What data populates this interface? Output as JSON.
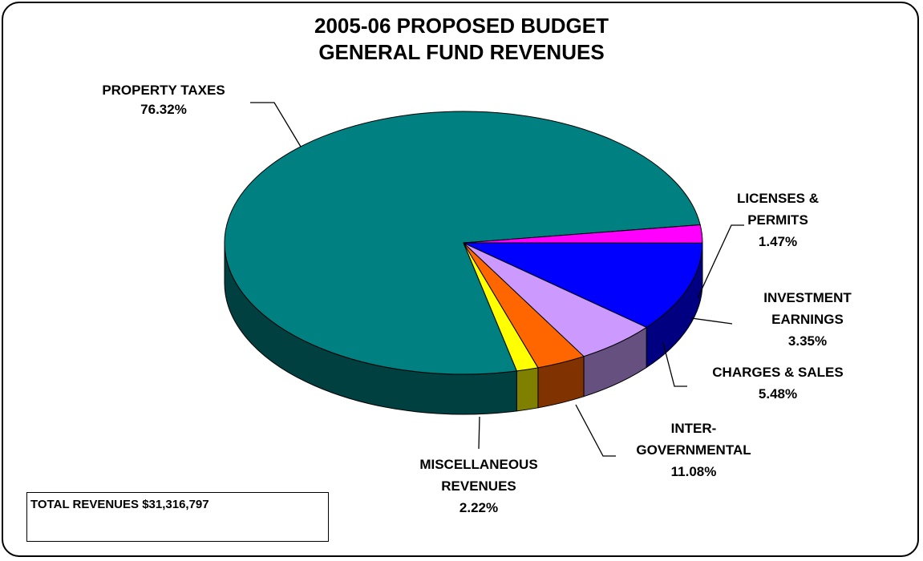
{
  "chart_data": {
    "type": "pie",
    "title": "2005-06 PROPOSED BUDGET",
    "subtitle": "GENERAL FUND REVENUES",
    "unit": "%",
    "slices": [
      {
        "name": "PROPERTY TAXES",
        "label_lines": [
          "PROPERTY TAXES"
        ],
        "value": 76.32,
        "value_label": "76.32%",
        "color": "#008080",
        "side_color": "#004040"
      },
      {
        "name": "LICENSES & PERMITS",
        "label_lines": [
          "LICENSES &",
          "PERMITS"
        ],
        "value": 1.47,
        "value_label": "1.47%",
        "color": "#FFFF00",
        "side_color": "#808000"
      },
      {
        "name": "INVESTMENT EARNINGS",
        "label_lines": [
          "INVESTMENT",
          "EARNINGS"
        ],
        "value": 3.35,
        "value_label": "3.35%",
        "color": "#FF6600",
        "side_color": "#803300"
      },
      {
        "name": "CHARGES & SALES",
        "label_lines": [
          "CHARGES & SALES"
        ],
        "value": 5.48,
        "value_label": "5.48%",
        "color": "#CC99FF",
        "side_color": "#665080"
      },
      {
        "name": "INTER-GOVERNMENTAL",
        "label_lines": [
          "INTER-",
          "GOVERNMENTAL"
        ],
        "value": 11.08,
        "value_label": "11.08%",
        "color": "#0000FF",
        "side_color": "#000080"
      },
      {
        "name": "MISCELLANEOUS REVENUES",
        "label_lines": [
          "MISCELLANEOUS",
          "REVENUES"
        ],
        "value": 2.22,
        "value_label": "2.22%",
        "color": "#FF00FF",
        "side_color": "#800080"
      }
    ]
  },
  "total_box": {
    "text": "TOTAL REVENUES $31,316,797"
  }
}
